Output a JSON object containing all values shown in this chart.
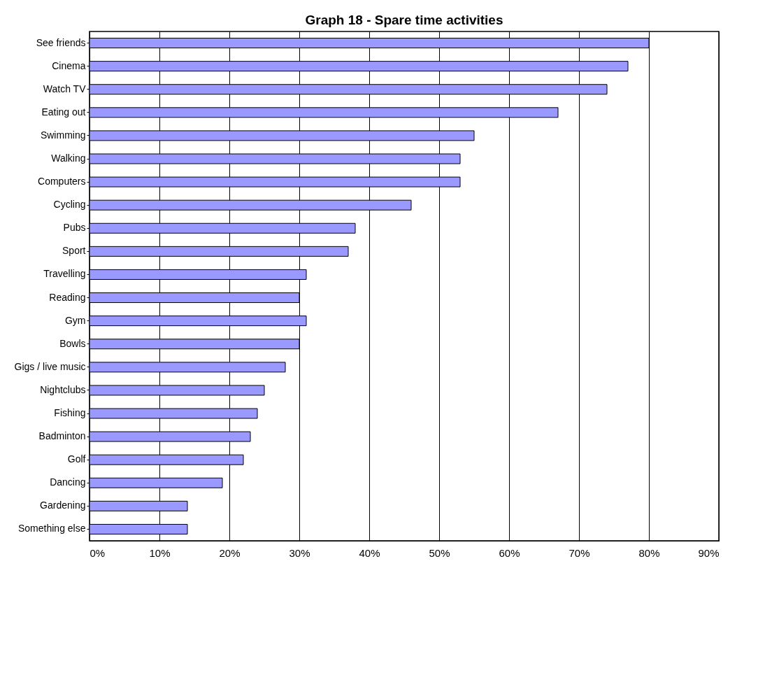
{
  "chart_data": {
    "type": "bar",
    "orientation": "horizontal",
    "title": "Graph 18 - Spare time activities",
    "categories": [
      "See friends",
      "Cinema",
      "Watch TV",
      "Eating out",
      "Swimming",
      "Walking",
      "Computers",
      "Cycling",
      "Pubs",
      "Sport",
      "Travelling",
      "Reading",
      "Gym",
      "Bowls",
      "Gigs / live music",
      "Nightclubs",
      "Fishing",
      "Badminton",
      "Golf",
      "Dancing",
      "Gardening",
      "Something else"
    ],
    "values": [
      80,
      77,
      74,
      67,
      55,
      53,
      53,
      46,
      38,
      37,
      31,
      30,
      31,
      30,
      28,
      25,
      24,
      23,
      22,
      19,
      14,
      14
    ],
    "color": "#9999ff",
    "xlim": [
      0,
      90
    ],
    "xticks": [
      {
        "value": 0,
        "label": "0%"
      },
      {
        "value": 10,
        "label": "10%"
      },
      {
        "value": 20,
        "label": "20%"
      },
      {
        "value": 30,
        "label": "30%"
      },
      {
        "value": 40,
        "label": "40%"
      },
      {
        "value": 50,
        "label": "50%"
      },
      {
        "value": 60,
        "label": "60%"
      },
      {
        "value": 70,
        "label": "70%"
      },
      {
        "value": 80,
        "label": "80%"
      },
      {
        "value": 90,
        "label": "90%"
      }
    ],
    "grid": "x"
  }
}
